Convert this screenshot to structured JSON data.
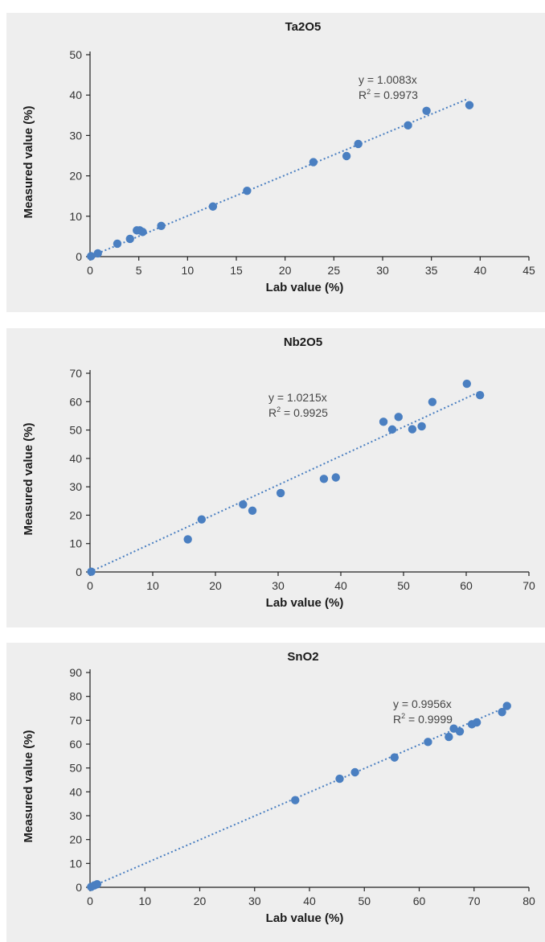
{
  "accent_color": "#4a7fc1",
  "chart_data": [
    {
      "type": "scatter",
      "title": "Ta2O5",
      "xlabel": "Lab value (%)",
      "ylabel": "Measured value (%)",
      "xlim": [
        0,
        45
      ],
      "ylim": [
        0,
        50
      ],
      "xticks": [
        0,
        5,
        10,
        15,
        20,
        25,
        30,
        35,
        40,
        45
      ],
      "yticks": [
        0,
        10,
        20,
        30,
        40,
        50
      ],
      "grid": false,
      "annotation": {
        "equation": "y = 1.0083x",
        "r2_label": "R",
        "r2_sup": "2",
        "r2_value": " = 0.9973"
      },
      "trendline": {
        "slope": 1.0083,
        "x_range": [
          0,
          38.8
        ]
      },
      "series": [
        {
          "points": [
            [
              0.1,
              0.1
            ],
            [
              0.8,
              0.8
            ],
            [
              2.8,
              3.2
            ],
            [
              4.1,
              4.4
            ],
            [
              4.8,
              6.5
            ],
            [
              5.1,
              6.5
            ],
            [
              5.4,
              6.1
            ],
            [
              7.3,
              7.6
            ],
            [
              12.6,
              12.4
            ],
            [
              16.1,
              16.3
            ],
            [
              22.9,
              23.4
            ],
            [
              26.3,
              24.9
            ],
            [
              27.5,
              27.9
            ],
            [
              32.6,
              32.5
            ],
            [
              34.5,
              36.1
            ],
            [
              38.9,
              37.5
            ]
          ]
        }
      ]
    },
    {
      "type": "scatter",
      "title": "Nb2O5",
      "xlabel": "Lab value (%)",
      "ylabel": "Measured value (%)",
      "xlim": [
        0,
        70
      ],
      "ylim": [
        0,
        70
      ],
      "xticks": [
        0,
        10,
        20,
        30,
        40,
        50,
        60,
        70
      ],
      "yticks": [
        0,
        10,
        20,
        30,
        40,
        50,
        60,
        70
      ],
      "grid": false,
      "annotation": {
        "equation": "y = 1.0215x",
        "r2_label": "R",
        "r2_sup": "2",
        "r2_value": " = 0.9925"
      },
      "trendline": {
        "slope": 1.0215,
        "x_range": [
          0,
          62
        ]
      },
      "series": [
        {
          "points": [
            [
              0.2,
              0.1
            ],
            [
              15.6,
              11.5
            ],
            [
              17.8,
              18.5
            ],
            [
              24.4,
              23.8
            ],
            [
              25.9,
              21.6
            ],
            [
              30.4,
              27.8
            ],
            [
              37.3,
              32.8
            ],
            [
              39.2,
              33.3
            ],
            [
              46.8,
              52.9
            ],
            [
              48.2,
              50.2
            ],
            [
              49.2,
              54.6
            ],
            [
              51.4,
              50.3
            ],
            [
              52.9,
              51.3
            ],
            [
              54.6,
              59.9
            ],
            [
              60.1,
              66.3
            ],
            [
              62.2,
              62.3
            ]
          ]
        }
      ]
    },
    {
      "type": "scatter",
      "title": "SnO2",
      "xlabel": "Lab value (%)",
      "ylabel": "Measured value (%)",
      "xlim": [
        0,
        80
      ],
      "ylim": [
        0,
        90
      ],
      "xticks": [
        0,
        10,
        20,
        30,
        40,
        50,
        60,
        70,
        80
      ],
      "yticks": [
        0,
        10,
        20,
        30,
        40,
        50,
        60,
        70,
        80,
        90
      ],
      "grid": false,
      "annotation": {
        "equation": "y = 0.9956x",
        "r2_label": "R",
        "r2_sup": "2",
        "r2_value": " = 0.9999"
      },
      "trendline": {
        "slope": 0.9956,
        "x_range": [
          0,
          76
        ]
      },
      "series": [
        {
          "points": [
            [
              0.2,
              0.2
            ],
            [
              0.8,
              0.8
            ],
            [
              1.3,
              1.3
            ],
            [
              37.4,
              36.5
            ],
            [
              45.5,
              45.5
            ],
            [
              48.3,
              48.2
            ],
            [
              55.5,
              54.4
            ],
            [
              61.6,
              60.9
            ],
            [
              65.4,
              63.0
            ],
            [
              66.3,
              66.5
            ],
            [
              67.4,
              65.3
            ],
            [
              69.6,
              68.3
            ],
            [
              70.5,
              69.1
            ],
            [
              75.1,
              73.4
            ],
            [
              76.0,
              76.0
            ]
          ]
        }
      ]
    }
  ]
}
